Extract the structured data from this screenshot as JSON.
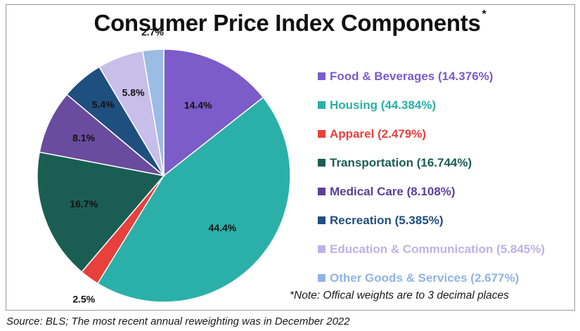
{
  "title": "Consumer Price Index Components",
  "title_marker": "*",
  "note": "*Note: Offical weights are to 3 decimal places",
  "source": "Source: BLS; The most recent annual reweighting was in December 2022",
  "chart_data": {
    "type": "pie",
    "title": "Consumer Price Index Components",
    "legend_position": "right",
    "slices": [
      {
        "name": "Food & Beverages",
        "legend": "Food & Beverages (14.376%)",
        "value": 14.376,
        "label": "14.4%",
        "color": "#7B5CC9",
        "legend_color": "#7B5CC9"
      },
      {
        "name": "Housing",
        "legend": "Housing (44.384%)",
        "value": 44.384,
        "label": "44.4%",
        "color": "#2AB0A8",
        "legend_color": "#2AB0A8"
      },
      {
        "name": "Apparel",
        "legend": "Apparel (2.479%)",
        "value": 2.479,
        "label": "2.5%",
        "color": "#E8403D",
        "legend_color": "#E8403D"
      },
      {
        "name": "Transportation",
        "legend": "Transportation (16.744%)",
        "value": 16.744,
        "label": "16.7%",
        "color": "#1A5E53",
        "legend_color": "#1A5E53"
      },
      {
        "name": "Medical Care",
        "legend": "Medical Care (8.108%)",
        "value": 8.108,
        "label": "8.1%",
        "color": "#6A4C9E",
        "legend_color": "#5D3F96"
      },
      {
        "name": "Recreation",
        "legend": "Recreation (5.385%)",
        "value": 5.385,
        "label": "5.4%",
        "color": "#1F4F7E",
        "legend_color": "#1F4F7E"
      },
      {
        "name": "Education & Communication",
        "legend": "Education & Communication (5.845%)",
        "value": 5.845,
        "label": "5.8%",
        "color": "#C8BEEA",
        "legend_color": "#BDB2E6"
      },
      {
        "name": "Other Goods & Services",
        "legend": "Other Goods & Services (2.677%)",
        "value": 2.677,
        "label": "2.7%",
        "color": "#9BBCE3",
        "legend_color": "#8FB4E3"
      }
    ]
  }
}
